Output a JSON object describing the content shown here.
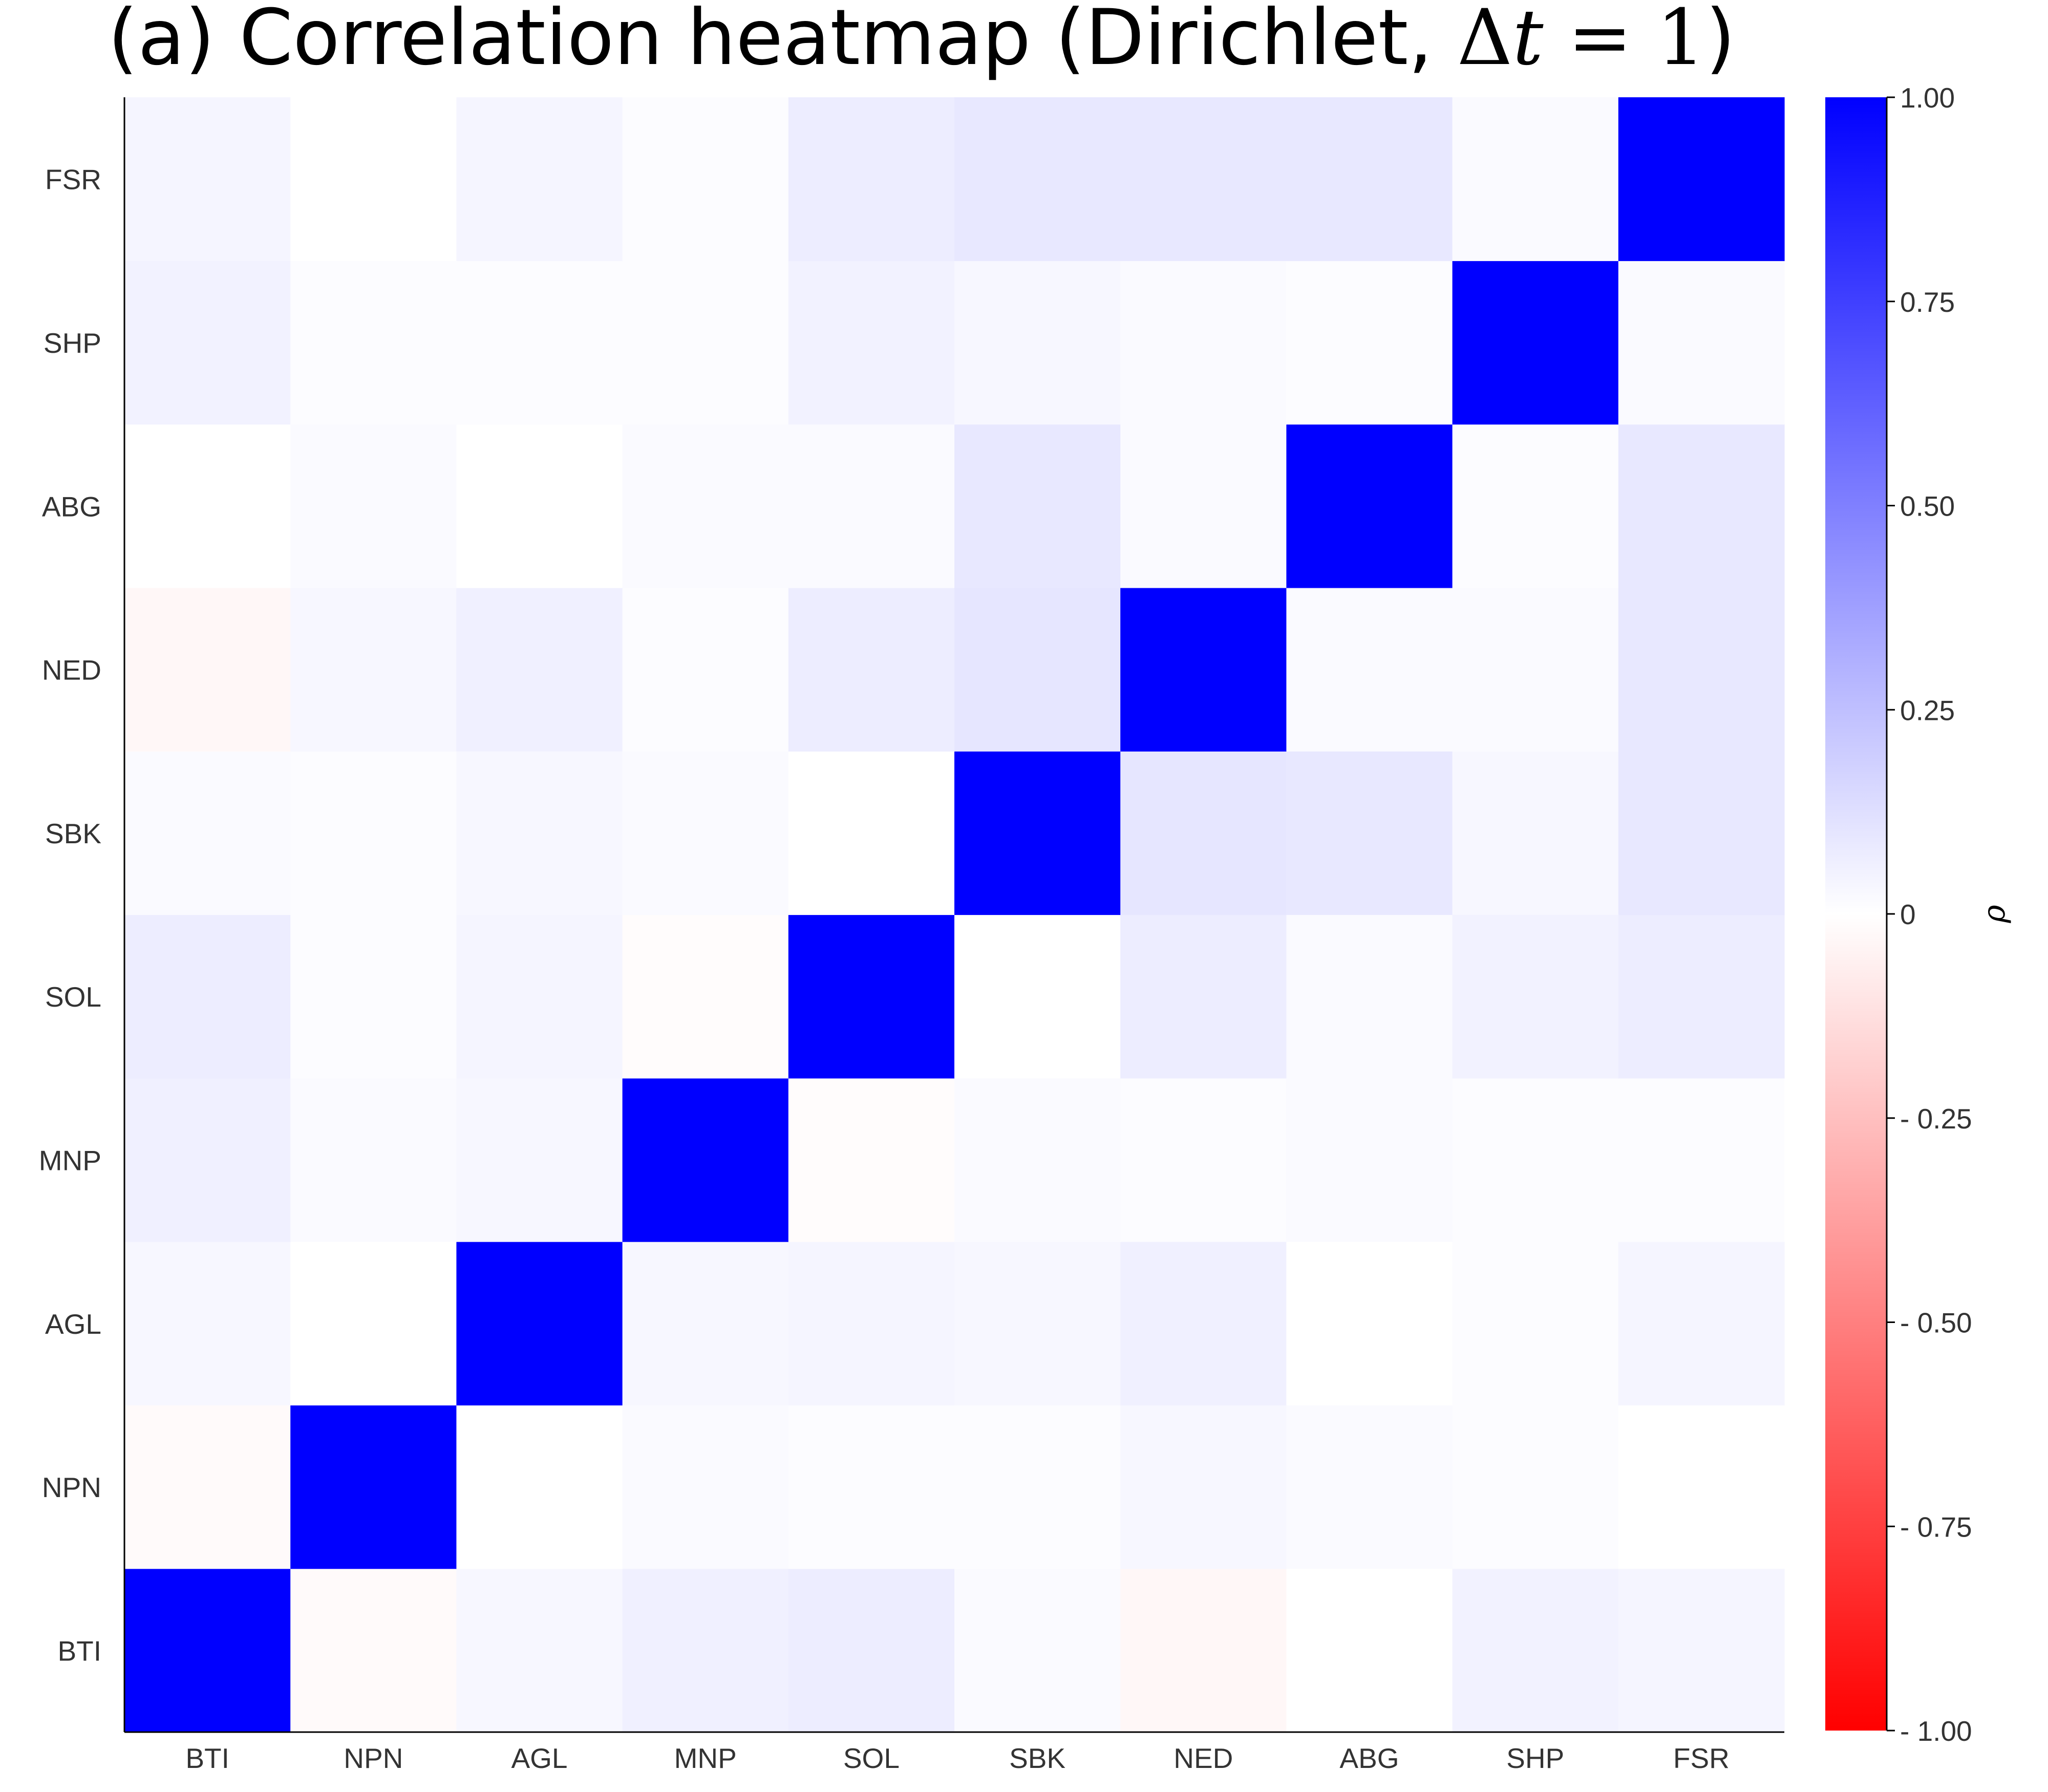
{
  "chart_data": {
    "type": "heatmap",
    "title": {
      "prefix": "(a) Correlation heatmap (Dirichlet, ",
      "math_delta": "Δ",
      "math_var": "t",
      "math_rest": " = 1",
      "suffix": ")"
    },
    "x_labels": [
      "BTI",
      "NPN",
      "AGL",
      "MNP",
      "SOL",
      "SBK",
      "NED",
      "ABG",
      "SHP",
      "FSR"
    ],
    "y_labels": [
      "BTI",
      "NPN",
      "AGL",
      "MNP",
      "SOL",
      "SBK",
      "NED",
      "ABG",
      "SHP",
      "FSR"
    ],
    "y_order": "bottom-to-top",
    "matrix": [
      [
        1.0,
        -0.02,
        0.03,
        0.06,
        0.07,
        0.02,
        -0.03,
        0.0,
        0.05,
        0.04
      ],
      [
        -0.02,
        1.0,
        0.0,
        0.02,
        0.01,
        0.01,
        0.03,
        0.02,
        0.01,
        0.0
      ],
      [
        0.03,
        0.0,
        1.0,
        0.03,
        0.04,
        0.03,
        0.06,
        0.0,
        0.01,
        0.04
      ],
      [
        0.06,
        0.02,
        0.03,
        1.0,
        -0.01,
        0.02,
        0.01,
        0.02,
        0.01,
        0.01
      ],
      [
        0.07,
        0.01,
        0.04,
        -0.01,
        1.0,
        0.0,
        0.07,
        0.02,
        0.05,
        0.07
      ],
      [
        0.02,
        0.01,
        0.03,
        0.02,
        0.0,
        1.0,
        0.1,
        0.09,
        0.03,
        0.09
      ],
      [
        -0.03,
        0.03,
        0.06,
        0.01,
        0.07,
        0.1,
        1.0,
        0.02,
        0.02,
        0.09
      ],
      [
        0.0,
        0.02,
        0.0,
        0.02,
        0.02,
        0.09,
        0.02,
        1.0,
        0.01,
        0.09
      ],
      [
        0.05,
        0.01,
        0.01,
        0.01,
        0.05,
        0.03,
        0.02,
        0.01,
        1.0,
        0.02
      ],
      [
        0.04,
        0.0,
        0.04,
        0.01,
        0.07,
        0.09,
        0.09,
        0.09,
        0.02,
        1.0
      ]
    ],
    "colorscale": {
      "min": -1.0,
      "max": 1.0,
      "negative_color": "#ff0000",
      "zero_color": "#ffffff",
      "positive_color": "#0000ff"
    },
    "colorbar": {
      "ticks": [
        {
          "value": 1.0,
          "label": "1.00"
        },
        {
          "value": 0.75,
          "label": "0.75"
        },
        {
          "value": 0.5,
          "label": "0.50"
        },
        {
          "value": 0.25,
          "label": "0.25"
        },
        {
          "value": 0.0,
          "label": "0"
        },
        {
          "value": -0.25,
          "label": "- 0.25"
        },
        {
          "value": -0.5,
          "label": "- 0.50"
        },
        {
          "value": -0.75,
          "label": "- 0.75"
        },
        {
          "value": -1.0,
          "label": "- 1.00"
        }
      ],
      "label": "ρ"
    },
    "grid": false
  }
}
